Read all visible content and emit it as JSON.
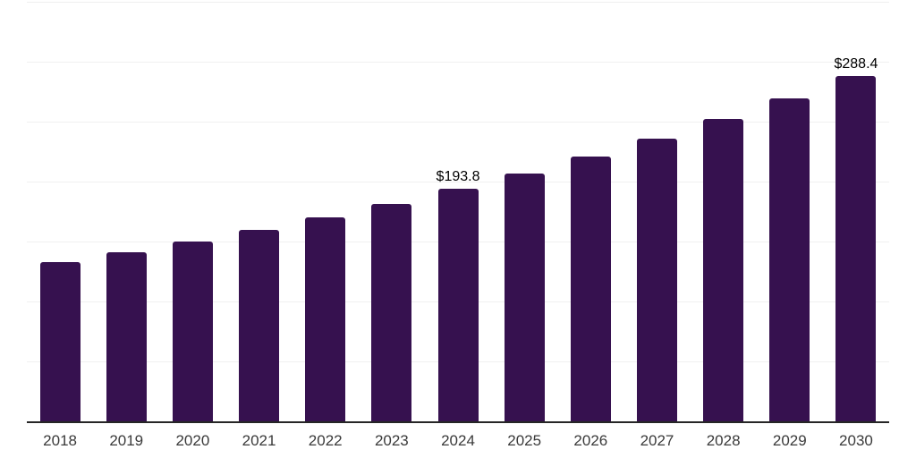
{
  "chart_data": {
    "type": "bar",
    "title": "",
    "xlabel": "",
    "ylabel": "",
    "categories": [
      "2018",
      "2019",
      "2020",
      "2021",
      "2022",
      "2023",
      "2024",
      "2025",
      "2026",
      "2027",
      "2028",
      "2029",
      "2030"
    ],
    "values": [
      132.8,
      141.0,
      150.2,
      159.6,
      170.0,
      181.0,
      193.8,
      206.9,
      221.1,
      236.0,
      252.2,
      269.5,
      288.4
    ],
    "data_labels": [
      "",
      "",
      "",
      "",
      "",
      "",
      "$193.8",
      "",
      "",
      "",
      "",
      "",
      "$288.4"
    ],
    "ylim": [
      0,
      350
    ],
    "gridline_step": 50,
    "grid": true,
    "legend": false,
    "y_axis_tick_labels_visible": false,
    "colors": {
      "bar": "#36114f",
      "gridline": "#f0f0f0",
      "axis_line": "#262626",
      "x_tick_label": "#3a3a3a",
      "data_label": "#000000",
      "background": "#ffffff"
    }
  }
}
